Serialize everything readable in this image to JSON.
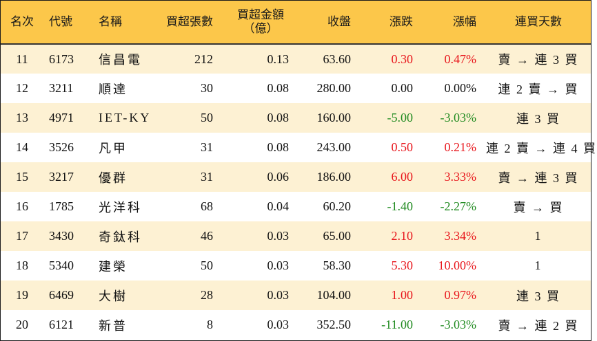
{
  "headers": {
    "rank": "名次",
    "code": "代號",
    "name": "名稱",
    "volume": "買超張數",
    "amount_line1": "買超金額",
    "amount_line2": "（億）",
    "close": "收盤",
    "change": "漲跌",
    "pct": "漲幅",
    "days": "連買天數"
  },
  "colors": {
    "header_bg": "#fcc74a",
    "stripe_bg": "#fdf1d3",
    "up": "#e8151b",
    "down": "#1f8a1f"
  },
  "rows": [
    {
      "rank": "11",
      "code": "6173",
      "name": "信昌電",
      "volume": "212",
      "amount": "0.13",
      "close": "63.60",
      "change": "0.30",
      "pct": "0.47%",
      "days": "賣 → 連 3 買",
      "dir": "up"
    },
    {
      "rank": "12",
      "code": "3211",
      "name": "順達",
      "volume": "30",
      "amount": "0.08",
      "close": "280.00",
      "change": "0.00",
      "pct": "0.00%",
      "days": "連 2 賣 → 買",
      "dir": "flat"
    },
    {
      "rank": "13",
      "code": "4971",
      "name": "IET-KY",
      "volume": "50",
      "amount": "0.08",
      "close": "160.00",
      "change": "-5.00",
      "pct": "-3.03%",
      "days": "連 3 買",
      "dir": "down"
    },
    {
      "rank": "14",
      "code": "3526",
      "name": "凡甲",
      "volume": "31",
      "amount": "0.08",
      "close": "243.00",
      "change": "0.50",
      "pct": "0.21%",
      "days": "連 2 賣 → 連 4 買",
      "dir": "up"
    },
    {
      "rank": "15",
      "code": "3217",
      "name": "優群",
      "volume": "31",
      "amount": "0.06",
      "close": "186.00",
      "change": "6.00",
      "pct": "3.33%",
      "days": "賣 → 連 3 買",
      "dir": "up"
    },
    {
      "rank": "16",
      "code": "1785",
      "name": "光洋科",
      "volume": "68",
      "amount": "0.04",
      "close": "60.20",
      "change": "-1.40",
      "pct": "-2.27%",
      "days": "賣 → 買",
      "dir": "down"
    },
    {
      "rank": "17",
      "code": "3430",
      "name": "奇鈦科",
      "volume": "46",
      "amount": "0.03",
      "close": "65.00",
      "change": "2.10",
      "pct": "3.34%",
      "days": "1",
      "dir": "up"
    },
    {
      "rank": "18",
      "code": "5340",
      "name": "建榮",
      "volume": "50",
      "amount": "0.03",
      "close": "58.30",
      "change": "5.30",
      "pct": "10.00%",
      "days": "1",
      "dir": "up"
    },
    {
      "rank": "19",
      "code": "6469",
      "name": "大樹",
      "volume": "28",
      "amount": "0.03",
      "close": "104.00",
      "change": "1.00",
      "pct": "0.97%",
      "days": "連 3 買",
      "dir": "up"
    },
    {
      "rank": "20",
      "code": "6121",
      "name": "新普",
      "volume": "8",
      "amount": "0.03",
      "close": "352.50",
      "change": "-11.00",
      "pct": "-3.03%",
      "days": "賣 → 連 2 買",
      "dir": "down"
    }
  ]
}
